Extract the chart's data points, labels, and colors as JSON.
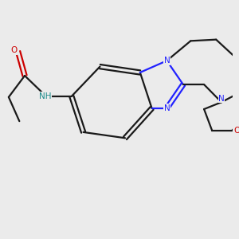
{
  "bg_color": "#ebebeb",
  "bond_color": "#1a1a1a",
  "N_color": "#2222ff",
  "O_color": "#cc0000",
  "NH_color": "#1a8a8a",
  "line_width": 1.6,
  "figsize": [
    3.0,
    3.0
  ],
  "dpi": 100,
  "xlim": [
    0,
    10
  ],
  "ylim": [
    0,
    10
  ],
  "fontsize": 7.5
}
